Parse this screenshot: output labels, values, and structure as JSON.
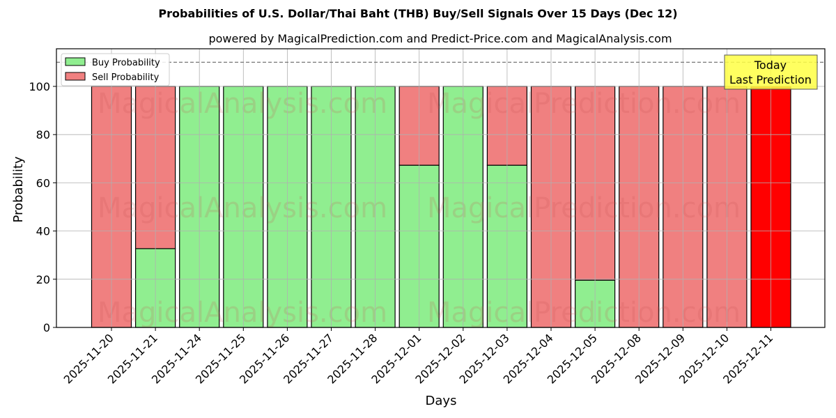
{
  "header": {
    "title": "Probabilities of U.S. Dollar/Thai Baht (THB) Buy/Sell Signals Over 15 Days (Dec 12)",
    "subtitle": "powered by MagicalPrediction.com and Predict-Price.com and MagicalAnalysis.com"
  },
  "legend": {
    "buy_label": "Buy Probability",
    "sell_label": "Sell Probability"
  },
  "annotation": {
    "line1": "Today",
    "line2": "Last Prediction"
  },
  "watermarks": [
    "MagicalAnalysis.com",
    "MagicalPrediction.com"
  ],
  "colors": {
    "buy": "#90ee90",
    "sell": "#f08080",
    "today_sell": "#ff0000",
    "annotation_bg": "#ffff44"
  },
  "chart_data": {
    "type": "bar",
    "stacked": true,
    "title": "Probabilities of U.S. Dollar/Thai Baht (THB) Buy/Sell Signals Over 15 Days (Dec 12)",
    "subtitle": "powered by MagicalPrediction.com and Predict-Price.com and MagicalAnalysis.com",
    "xlabel": "Days",
    "ylabel": "Probability",
    "ylim": [
      0,
      115
    ],
    "yticks": [
      0,
      20,
      40,
      60,
      80,
      100
    ],
    "grid": true,
    "legend_position": "upper left",
    "reference_line": {
      "y": 110,
      "style": "dashed"
    },
    "categories": [
      "2025-11-20",
      "2025-11-21",
      "2025-11-24",
      "2025-11-25",
      "2025-11-26",
      "2025-11-27",
      "2025-11-28",
      "2025-12-01",
      "2025-12-02",
      "2025-12-03",
      "2025-12-04",
      "2025-12-05",
      "2025-12-08",
      "2025-12-09",
      "2025-12-10",
      "2025-12-11"
    ],
    "series": [
      {
        "name": "Buy Probability",
        "values": [
          0,
          32.7,
          100,
          100,
          100,
          100,
          100,
          67.3,
          100,
          67.3,
          0,
          19.6,
          0,
          0,
          0,
          0
        ]
      },
      {
        "name": "Sell Probability",
        "values": [
          100,
          67.3,
          0,
          0,
          0,
          0,
          0,
          32.7,
          0,
          32.7,
          100,
          80.4,
          100,
          100,
          100,
          100
        ]
      }
    ],
    "annotations": [
      {
        "text": "Today\nLast Prediction",
        "x": "2025-12-11"
      }
    ]
  }
}
